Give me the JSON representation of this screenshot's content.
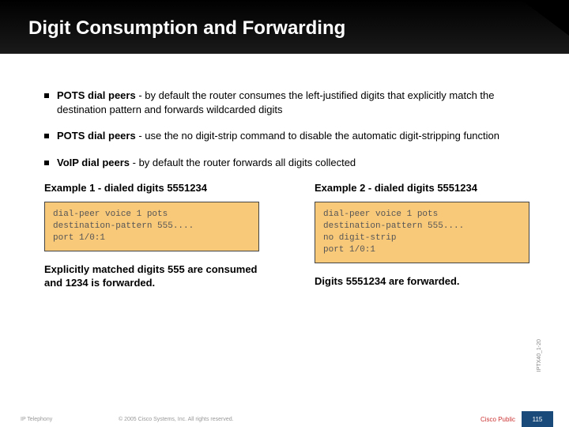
{
  "header": {
    "title": "Digit Consumption and Forwarding",
    "title_color": "#ffffff",
    "background_color": "#000000"
  },
  "bullets": [
    {
      "bold": "POTS dial peers",
      "rest": " - by default the router consumes the left-justified digits that explicitly match the destination pattern and forwards wildcarded digits"
    },
    {
      "bold": "POTS dial peers",
      "rest": " - use the no digit-strip command to disable the automatic digit-stripping function"
    },
    {
      "bold": "VoIP dial peers",
      "rest": " - by default the router forwards all digits collected"
    }
  ],
  "examples": [
    {
      "title": "Example 1 - dialed digits 5551234",
      "code": "dial-peer voice 1 pots\ndestination-pattern 555....\nport 1/0:1",
      "result": "Explicitly matched digits 555 are consumed and 1234 is forwarded."
    },
    {
      "title": "Example 2 - dialed digits 5551234",
      "code": "dial-peer voice 1 pots\ndestination-pattern 555....\nno digit-strip\nport 1/0:1",
      "result": "Digits 5551234 are forwarded."
    }
  ],
  "styling": {
    "code_box_bg": "#f9c97a",
    "code_box_border": "#444444",
    "body_bg": "#ffffff",
    "text_color": "#000000",
    "bullet_size": 6
  },
  "side_label": "IPTX40_1-20",
  "footer": {
    "left": "IP Telephony",
    "center": "© 2005 Cisco Systems, Inc. All rights reserved.",
    "right": "Cisco Public",
    "page": "115",
    "page_bg": "#1a4a7a"
  }
}
